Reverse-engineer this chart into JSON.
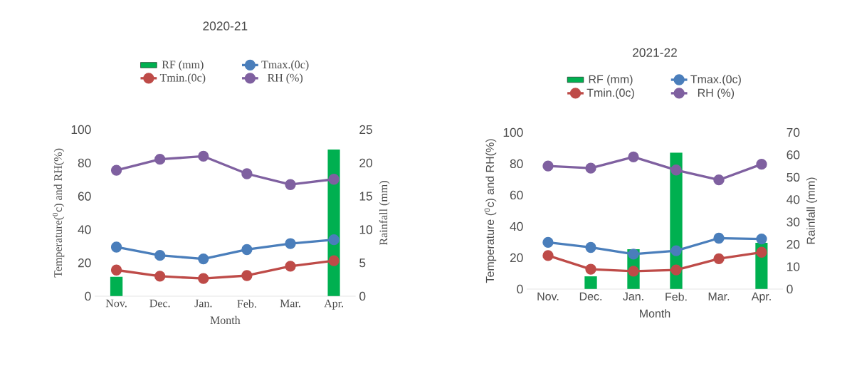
{
  "chart_data": [
    {
      "type": "line",
      "title": "2020-21",
      "xlabel": "Month",
      "ylabel": "Temperature($^{0}$c) and RH(%)",
      "y2label": "Rainfall (mm)",
      "categories": [
        "Nov.",
        "Dec.",
        "Jan.",
        "Feb.",
        "Mar.",
        "Apr."
      ],
      "series": [
        {
          "name": "RF (mm)",
          "type": "bar",
          "axis": "y2",
          "color": "#00b050",
          "values": [
            2.9,
            0,
            0,
            0,
            0,
            22
          ]
        },
        {
          "name": "Tmax.(0c)",
          "color": "#4a7ebb",
          "values": [
            29.5,
            24.5,
            22.4,
            28,
            31.6,
            33.9
          ]
        },
        {
          "name": "Tmin.(0c)",
          "color": "#be4b48",
          "values": [
            15.7,
            12,
            10.6,
            12.4,
            18,
            21.3
          ]
        },
        {
          "name": "RH (%)",
          "color": "#7f60a0",
          "values": [
            75.6,
            82.2,
            84,
            73.5,
            67,
            70.2
          ]
        }
      ],
      "ylim": [
        0,
        100
      ],
      "yticks": [
        0,
        20,
        40,
        60,
        80,
        100
      ],
      "y2lim": [
        0,
        25
      ],
      "y2ticks": [
        0,
        5,
        10,
        15,
        20,
        25
      ],
      "legend": "top",
      "marker": "circle"
    },
    {
      "type": "line",
      "title": "2021-22",
      "xlabel": "Month",
      "ylabel": "Temperature ($^{0}$c) and RH(%)",
      "y2label": "Rainfall (mm)",
      "categories": [
        "Nov.",
        "Dec.",
        "Jan.",
        "Feb.",
        "Mar.",
        "Apr."
      ],
      "series": [
        {
          "name": "RF (mm)",
          "type": "bar",
          "axis": "y2",
          "color": "#00b050",
          "values": [
            0,
            5.7,
            17.8,
            61,
            0,
            20.7
          ]
        },
        {
          "name": "Tmax.(0c)",
          "color": "#4a7ebb",
          "values": [
            29.8,
            26.6,
            22.3,
            24.5,
            32.5,
            32
          ]
        },
        {
          "name": "Tmin.(0c)",
          "color": "#be4b48",
          "values": [
            21.4,
            12.7,
            11.4,
            12.2,
            19.4,
            23.5
          ]
        },
        {
          "name": "RH (%)",
          "color": "#7f60a0",
          "values": [
            78.6,
            77.2,
            84.4,
            76,
            69.7,
            79.7
          ]
        }
      ],
      "ylim": [
        0,
        100
      ],
      "yticks": [
        0,
        20,
        40,
        60,
        80,
        100
      ],
      "y2lim": [
        0,
        70
      ],
      "y2ticks": [
        0,
        10,
        20,
        30,
        40,
        50,
        60,
        70
      ],
      "legend": "top",
      "marker": "circle"
    }
  ]
}
